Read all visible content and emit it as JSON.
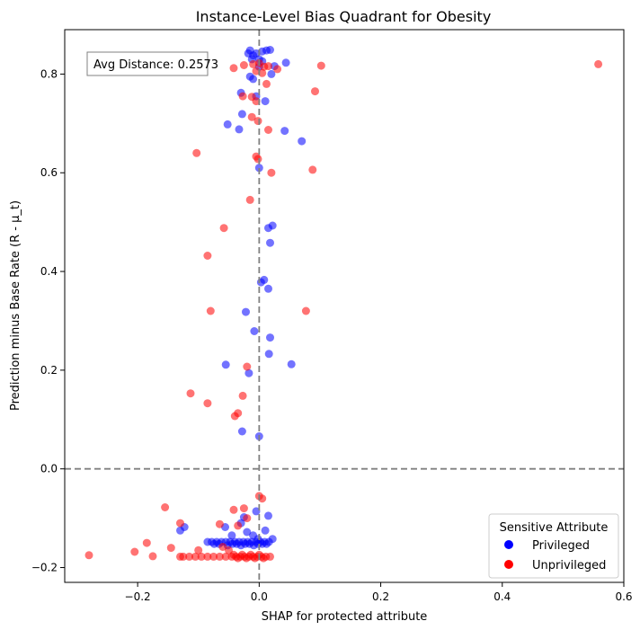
{
  "chart_data": {
    "type": "scatter",
    "title": "Instance-Level Bias Quadrant for Obesity",
    "xlabel": "SHAP for protected attribute",
    "ylabel": "Prediction minus Base Rate (R - μ_t)",
    "xlim": [
      -0.32,
      0.6
    ],
    "ylim": [
      -0.23,
      0.89
    ],
    "x_ticks": [
      -0.2,
      0.0,
      0.2,
      0.4,
      0.6
    ],
    "x_tick_labels": [
      "−0.2",
      "0.0",
      "0.2",
      "0.4",
      "0.6"
    ],
    "y_ticks": [
      -0.2,
      0.0,
      0.2,
      0.4,
      0.6,
      0.8
    ],
    "y_tick_labels": [
      "−0.2",
      "0.0",
      "0.2",
      "0.4",
      "0.6",
      "0.8"
    ],
    "grid": false,
    "reference_lines": {
      "x": 0,
      "y": 0,
      "style": "dashed",
      "color": "#808080"
    },
    "annotation": "Avg Distance: 0.2573",
    "legend": {
      "title": "Sensitive Attribute",
      "placement": "bottom-right",
      "entries": [
        "Privileged",
        "Unprivileged"
      ]
    },
    "series": [
      {
        "name": "Privileged",
        "color": "#0000ff",
        "points": [
          [
            -0.015,
            0.848
          ],
          [
            0.005,
            0.846
          ],
          [
            0.012,
            0.848
          ],
          [
            0.018,
            0.849
          ],
          [
            -0.01,
            0.838
          ],
          [
            -0.005,
            0.842
          ],
          [
            0.0,
            0.83
          ],
          [
            0.005,
            0.826
          ],
          [
            0.025,
            0.816
          ],
          [
            0.044,
            0.823
          ],
          [
            -0.012,
            0.83
          ],
          [
            -0.018,
            0.842
          ],
          [
            0.0,
            0.815
          ],
          [
            -0.015,
            0.795
          ],
          [
            -0.01,
            0.79
          ],
          [
            0.02,
            0.8
          ],
          [
            -0.03,
            0.762
          ],
          [
            -0.005,
            0.755
          ],
          [
            0.01,
            0.745
          ],
          [
            -0.028,
            0.719
          ],
          [
            -0.052,
            0.698
          ],
          [
            -0.033,
            0.688
          ],
          [
            0.042,
            0.685
          ],
          [
            0.07,
            0.664
          ],
          [
            0.0,
            0.61
          ],
          [
            0.022,
            0.493
          ],
          [
            0.015,
            0.488
          ],
          [
            0.018,
            0.458
          ],
          [
            0.008,
            0.383
          ],
          [
            0.003,
            0.378
          ],
          [
            0.015,
            0.365
          ],
          [
            -0.022,
            0.318
          ],
          [
            -0.008,
            0.279
          ],
          [
            0.018,
            0.266
          ],
          [
            0.016,
            0.233
          ],
          [
            0.053,
            0.212
          ],
          [
            -0.055,
            0.211
          ],
          [
            -0.017,
            0.194
          ],
          [
            -0.028,
            0.076
          ],
          [
            0.0,
            0.066
          ],
          [
            -0.005,
            -0.086
          ],
          [
            0.015,
            -0.095
          ],
          [
            -0.025,
            -0.098
          ],
          [
            -0.03,
            -0.11
          ],
          [
            -0.056,
            -0.118
          ],
          [
            -0.123,
            -0.118
          ],
          [
            -0.13,
            -0.125
          ],
          [
            0.01,
            -0.125
          ],
          [
            -0.02,
            -0.128
          ],
          [
            -0.01,
            -0.135
          ],
          [
            -0.045,
            -0.135
          ],
          [
            -0.002,
            -0.142
          ],
          [
            0.022,
            -0.142
          ],
          [
            -0.085,
            -0.148
          ],
          [
            -0.078,
            -0.148
          ],
          [
            -0.07,
            -0.148
          ],
          [
            -0.062,
            -0.148
          ],
          [
            -0.055,
            -0.148
          ],
          [
            -0.048,
            -0.148
          ],
          [
            -0.04,
            -0.148
          ],
          [
            -0.033,
            -0.148
          ],
          [
            -0.026,
            -0.148
          ],
          [
            -0.019,
            -0.148
          ],
          [
            -0.012,
            -0.148
          ],
          [
            -0.005,
            -0.148
          ],
          [
            0.002,
            -0.148
          ],
          [
            0.009,
            -0.148
          ],
          [
            0.016,
            -0.148
          ],
          [
            -0.074,
            -0.152
          ],
          [
            -0.066,
            -0.152
          ],
          [
            -0.044,
            -0.152
          ],
          [
            -0.037,
            -0.152
          ],
          [
            -0.023,
            -0.152
          ],
          [
            -0.016,
            -0.152
          ],
          [
            -0.002,
            -0.152
          ],
          [
            0.005,
            -0.152
          ],
          [
            0.012,
            -0.152
          ],
          [
            -0.052,
            -0.155
          ],
          [
            -0.03,
            -0.155
          ],
          [
            -0.009,
            -0.155
          ]
        ]
      },
      {
        "name": "Unprivileged",
        "color": "#ff0000",
        "points": [
          [
            0.558,
            0.82
          ],
          [
            0.102,
            0.817
          ],
          [
            -0.042,
            0.812
          ],
          [
            -0.025,
            0.818
          ],
          [
            0.0,
            0.822
          ],
          [
            0.008,
            0.815
          ],
          [
            0.015,
            0.816
          ],
          [
            0.03,
            0.81
          ],
          [
            -0.005,
            0.806
          ],
          [
            0.005,
            0.802
          ],
          [
            -0.01,
            0.82
          ],
          [
            0.012,
            0.78
          ],
          [
            0.092,
            0.765
          ],
          [
            -0.027,
            0.755
          ],
          [
            -0.012,
            0.754
          ],
          [
            -0.005,
            0.745
          ],
          [
            -0.012,
            0.713
          ],
          [
            -0.002,
            0.705
          ],
          [
            0.015,
            0.687
          ],
          [
            -0.103,
            0.64
          ],
          [
            -0.005,
            0.633
          ],
          [
            -0.002,
            0.628
          ],
          [
            0.088,
            0.606
          ],
          [
            0.02,
            0.6
          ],
          [
            -0.015,
            0.545
          ],
          [
            -0.058,
            0.488
          ],
          [
            -0.085,
            0.432
          ],
          [
            -0.08,
            0.32
          ],
          [
            0.077,
            0.32
          ],
          [
            -0.02,
            0.207
          ],
          [
            -0.113,
            0.153
          ],
          [
            -0.027,
            0.148
          ],
          [
            -0.085,
            0.133
          ],
          [
            -0.035,
            0.113
          ],
          [
            -0.04,
            0.107
          ],
          [
            0.0,
            -0.055
          ],
          [
            0.005,
            -0.06
          ],
          [
            -0.155,
            -0.078
          ],
          [
            -0.042,
            -0.083
          ],
          [
            -0.025,
            -0.08
          ],
          [
            -0.02,
            -0.1
          ],
          [
            -0.13,
            -0.11
          ],
          [
            -0.065,
            -0.112
          ],
          [
            -0.035,
            -0.115
          ],
          [
            -0.145,
            -0.16
          ],
          [
            -0.1,
            -0.165
          ],
          [
            -0.06,
            -0.158
          ],
          [
            -0.05,
            -0.165
          ],
          [
            -0.185,
            -0.15
          ],
          [
            -0.205,
            -0.168
          ],
          [
            -0.28,
            -0.175
          ],
          [
            -0.175,
            -0.177
          ],
          [
            -0.13,
            -0.178
          ],
          [
            -0.125,
            -0.178
          ],
          [
            -0.115,
            -0.178
          ],
          [
            -0.105,
            -0.178
          ],
          [
            -0.095,
            -0.178
          ],
          [
            -0.085,
            -0.178
          ],
          [
            -0.075,
            -0.178
          ],
          [
            -0.065,
            -0.178
          ],
          [
            -0.055,
            -0.178
          ],
          [
            -0.045,
            -0.178
          ],
          [
            -0.038,
            -0.178
          ],
          [
            -0.031,
            -0.178
          ],
          [
            -0.024,
            -0.178
          ],
          [
            -0.017,
            -0.178
          ],
          [
            -0.01,
            -0.178
          ],
          [
            -0.003,
            -0.178
          ],
          [
            0.004,
            -0.178
          ],
          [
            0.011,
            -0.178
          ],
          [
            0.018,
            -0.178
          ],
          [
            -0.042,
            -0.174
          ],
          [
            -0.028,
            -0.174
          ],
          [
            -0.014,
            -0.174
          ],
          [
            0.0,
            -0.174
          ],
          [
            -0.035,
            -0.181
          ],
          [
            -0.021,
            -0.181
          ],
          [
            -0.007,
            -0.181
          ],
          [
            0.007,
            -0.181
          ]
        ]
      }
    ]
  }
}
